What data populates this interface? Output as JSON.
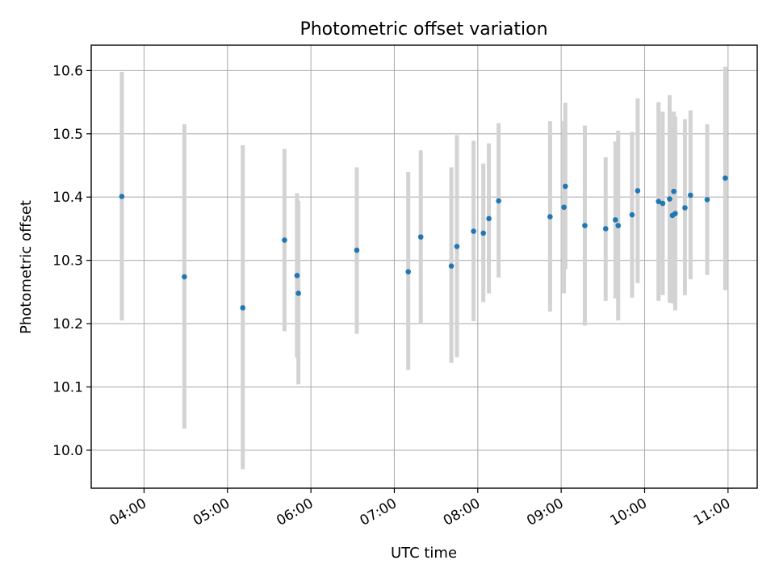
{
  "chart_data": {
    "type": "scatter",
    "title": "Photometric offset variation",
    "xlabel": "UTC time",
    "ylabel": "Photometric offset",
    "x_range": [
      "03:22",
      "11:21"
    ],
    "ylim": [
      9.94,
      10.64
    ],
    "xticks": [
      "04:00",
      "05:00",
      "06:00",
      "07:00",
      "08:00",
      "09:00",
      "10:00",
      "11:00"
    ],
    "yticks": [
      "10.0",
      "10.1",
      "10.2",
      "10.3",
      "10.4",
      "10.5",
      "10.6"
    ],
    "grid": true,
    "marker_color": "#1f77b4",
    "errorbar_color": "#d3d3d3",
    "points": [
      {
        "t": "03:44",
        "y": 10.401,
        "ylo": 10.205,
        "yhi": 10.598
      },
      {
        "t": "04:29",
        "y": 10.274,
        "ylo": 10.034,
        "yhi": 10.515
      },
      {
        "t": "05:11",
        "y": 10.225,
        "ylo": 9.97,
        "yhi": 10.482
      },
      {
        "t": "05:41",
        "y": 10.332,
        "ylo": 10.188,
        "yhi": 10.476
      },
      {
        "t": "05:50",
        "y": 10.276,
        "ylo": 10.146,
        "yhi": 10.406
      },
      {
        "t": "05:51",
        "y": 10.248,
        "ylo": 10.104,
        "yhi": 10.394
      },
      {
        "t": "06:33",
        "y": 10.316,
        "ylo": 10.184,
        "yhi": 10.447
      },
      {
        "t": "07:10",
        "y": 10.282,
        "ylo": 10.127,
        "yhi": 10.44
      },
      {
        "t": "07:19",
        "y": 10.337,
        "ylo": 10.2,
        "yhi": 10.474
      },
      {
        "t": "07:41",
        "y": 10.291,
        "ylo": 10.138,
        "yhi": 10.447
      },
      {
        "t": "07:45",
        "y": 10.322,
        "ylo": 10.147,
        "yhi": 10.498
      },
      {
        "t": "07:57",
        "y": 10.346,
        "ylo": 10.204,
        "yhi": 10.489
      },
      {
        "t": "08:04",
        "y": 10.343,
        "ylo": 10.234,
        "yhi": 10.453
      },
      {
        "t": "08:08",
        "y": 10.366,
        "ylo": 10.248,
        "yhi": 10.485
      },
      {
        "t": "08:15",
        "y": 10.394,
        "ylo": 10.273,
        "yhi": 10.517
      },
      {
        "t": "08:52",
        "y": 10.369,
        "ylo": 10.219,
        "yhi": 10.52
      },
      {
        "t": "09:02",
        "y": 10.384,
        "ylo": 10.248,
        "yhi": 10.52
      },
      {
        "t": "09:03",
        "y": 10.417,
        "ylo": 10.286,
        "yhi": 10.549
      },
      {
        "t": "09:17",
        "y": 10.355,
        "ylo": 10.197,
        "yhi": 10.513
      },
      {
        "t": "09:32",
        "y": 10.35,
        "ylo": 10.236,
        "yhi": 10.463
      },
      {
        "t": "09:39",
        "y": 10.364,
        "ylo": 10.24,
        "yhi": 10.488
      },
      {
        "t": "09:41",
        "y": 10.355,
        "ylo": 10.205,
        "yhi": 10.505
      },
      {
        "t": "09:51",
        "y": 10.372,
        "ylo": 10.241,
        "yhi": 10.503
      },
      {
        "t": "09:55",
        "y": 10.41,
        "ylo": 10.264,
        "yhi": 10.556
      },
      {
        "t": "10:10",
        "y": 10.393,
        "ylo": 10.236,
        "yhi": 10.55
      },
      {
        "t": "10:13",
        "y": 10.39,
        "ylo": 10.245,
        "yhi": 10.535
      },
      {
        "t": "10:18",
        "y": 10.397,
        "ylo": 10.233,
        "yhi": 10.561
      },
      {
        "t": "10:20",
        "y": 10.371,
        "ylo": 10.232,
        "yhi": 10.51
      },
      {
        "t": "10:21",
        "y": 10.409,
        "ylo": 10.25,
        "yhi": 10.535
      },
      {
        "t": "10:22",
        "y": 10.374,
        "ylo": 10.221,
        "yhi": 10.527
      },
      {
        "t": "10:29",
        "y": 10.383,
        "ylo": 10.245,
        "yhi": 10.523
      },
      {
        "t": "10:33",
        "y": 10.403,
        "ylo": 10.27,
        "yhi": 10.537
      },
      {
        "t": "10:45",
        "y": 10.396,
        "ylo": 10.277,
        "yhi": 10.515
      },
      {
        "t": "10:58",
        "y": 10.43,
        "ylo": 10.253,
        "yhi": 10.606
      }
    ]
  }
}
